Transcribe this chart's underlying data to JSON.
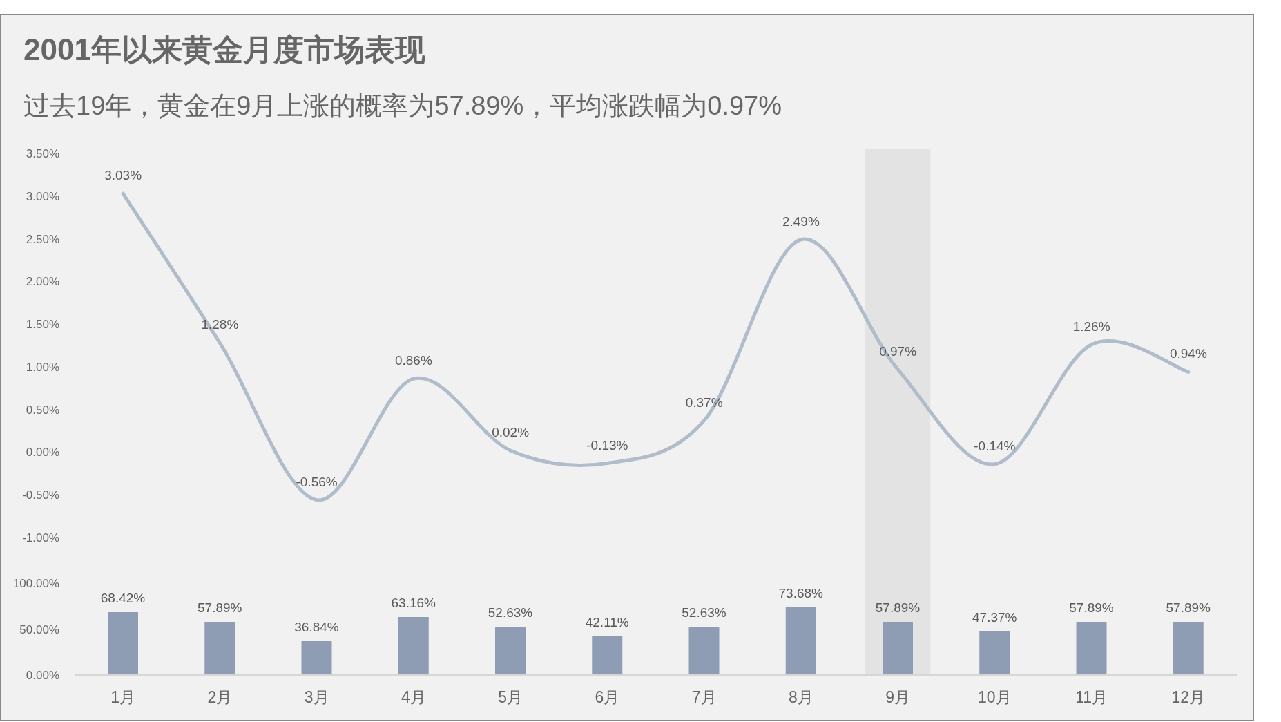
{
  "chart_data": [
    {
      "type": "line",
      "title": "2001年以来黄金月度市场表现",
      "subtitle": "过去19年，黄金在9月上涨的概率为57.89%，平均涨跌幅为0.97%",
      "categories": [
        "1月",
        "2月",
        "3月",
        "4月",
        "5月",
        "6月",
        "7月",
        "8月",
        "9月",
        "10月",
        "11月",
        "12月"
      ],
      "values": [
        3.03,
        1.28,
        -0.56,
        0.86,
        0.02,
        -0.13,
        0.37,
        2.49,
        0.97,
        -0.14,
        1.26,
        0.94
      ],
      "value_labels": [
        "3.03%",
        "1.28%",
        "-0.56%",
        "0.86%",
        "0.02%",
        "-0.13%",
        "0.37%",
        "2.49%",
        "0.97%",
        "-0.14%",
        "1.26%",
        "0.94%"
      ],
      "color": "#b1bccb",
      "ylim": [
        -1,
        3.5
      ],
      "yticks": [
        {
          "value": -1,
          "label": "-1.00%"
        },
        {
          "value": -0.5,
          "label": "-0.50%"
        },
        {
          "value": 0,
          "label": "0.00%"
        },
        {
          "value": 0.5,
          "label": "0.50%"
        },
        {
          "value": 1,
          "label": "1.00%"
        },
        {
          "value": 1.5,
          "label": "1.50%"
        },
        {
          "value": 2,
          "label": "2.00%"
        },
        {
          "value": 2.5,
          "label": "2.50%"
        },
        {
          "value": 3,
          "label": "3.00%"
        },
        {
          "value": 3.5,
          "label": "3.50%"
        }
      ],
      "tick_labels": "y",
      "bands": [
        {
          "axis": "x",
          "from": "9月",
          "to": "9月",
          "color": "#e3e3e3"
        }
      ]
    },
    {
      "type": "bar",
      "categories": [
        "1月",
        "2月",
        "3月",
        "4月",
        "5月",
        "6月",
        "7月",
        "8月",
        "9月",
        "10月",
        "11月",
        "12月"
      ],
      "values": [
        68.42,
        57.89,
        36.84,
        63.16,
        52.63,
        42.11,
        52.63,
        73.68,
        57.89,
        47.37,
        57.89,
        57.89
      ],
      "value_labels": [
        "68.42%",
        "57.89%",
        "36.84%",
        "63.16%",
        "52.63%",
        "42.11%",
        "52.63%",
        "73.68%",
        "57.89%",
        "47.37%",
        "57.89%",
        "57.89%"
      ],
      "color": "#8e9db3",
      "ylim": [
        0,
        100
      ],
      "yticks": [
        {
          "value": 0,
          "label": "0.00%"
        },
        {
          "value": 50,
          "label": "50.00%"
        },
        {
          "value": 100,
          "label": "100.00%"
        }
      ],
      "bands": [
        {
          "axis": "x",
          "from": "9月",
          "to": "9月",
          "color": "#e3e3e3"
        }
      ]
    }
  ]
}
